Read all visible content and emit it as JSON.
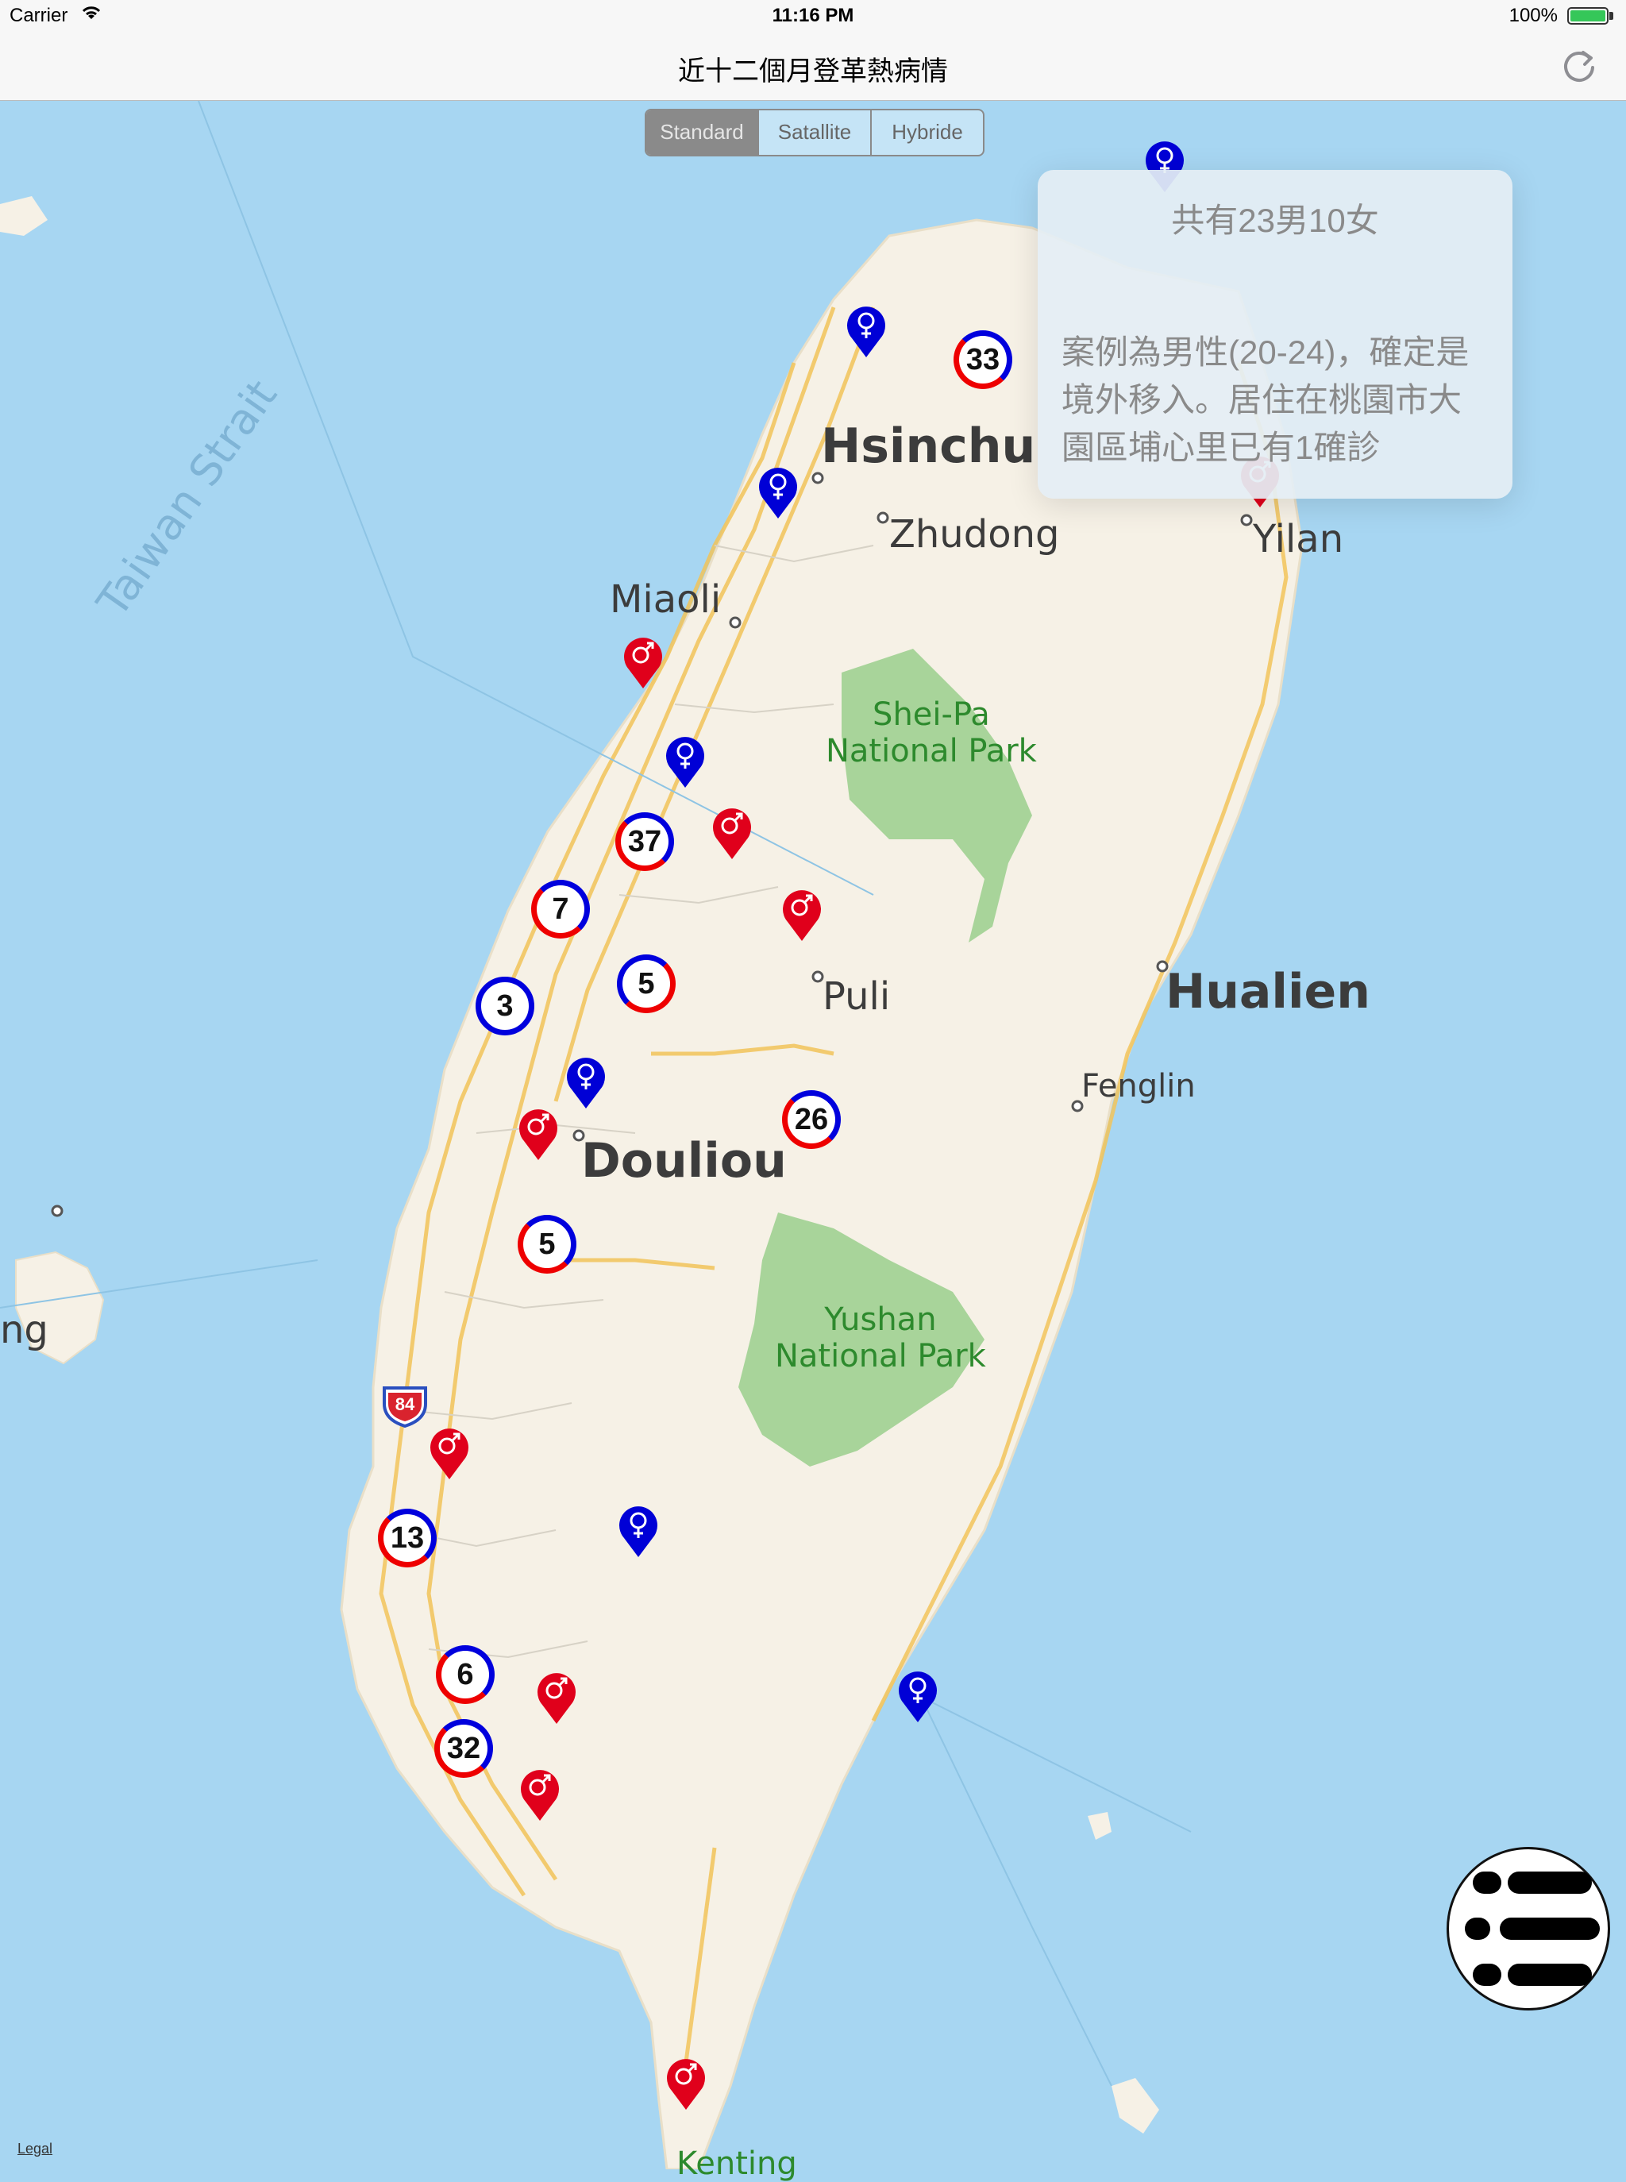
{
  "status_bar": {
    "carrier": "Carrier",
    "time": "11:16 PM",
    "battery": "100%"
  },
  "nav": {
    "title": "近十二個月登革熱病情",
    "refresh_icon": "refresh-icon"
  },
  "map_type": {
    "options": [
      "Standard",
      "Satallite",
      "Hybride"
    ],
    "selected": "Standard"
  },
  "map_labels": {
    "strait": "Taiwan Strait",
    "hsinchu": "Hsinchu",
    "zhudong": "Zhudong",
    "yilan": "Yilan",
    "miaoli": "Miaoli",
    "shei_pa": "Shei-Pa\nNational Park",
    "hualien": "Hualien",
    "puli": "Puli",
    "fenglin": "Fenglin",
    "douliou": "Douliou",
    "yushan": "Yushan\nNational Park",
    "penghu_partial": "ng",
    "kenting_partial": "Kenting",
    "highway": "84"
  },
  "clusters": [
    {
      "count": "33",
      "style": "mix-red"
    },
    {
      "count": "37",
      "style": "mix-red"
    },
    {
      "count": "7",
      "style": "mix-red"
    },
    {
      "count": "3",
      "style": "blue"
    },
    {
      "count": "5",
      "style": "mix-blue"
    },
    {
      "count": "26",
      "style": "mix-red"
    },
    {
      "count": "5",
      "style": "mix-red"
    },
    {
      "count": "13",
      "style": "mix-red"
    },
    {
      "count": "6",
      "style": "mix-red"
    },
    {
      "count": "32",
      "style": "mix-red"
    }
  ],
  "pins": {
    "male_icon": "male-symbol-icon",
    "female_icon": "female-symbol-icon",
    "male_color": "#e0001b",
    "female_color": "#0000d6"
  },
  "callout": {
    "headline": "共有23男10女",
    "body": "案例為男性(20-24)，確定是境外移入。居住在桃園市大園區埔心里已有1確診"
  },
  "menu_button": {
    "icon": "yi-jing-menu-icon"
  },
  "legal": "Legal"
}
